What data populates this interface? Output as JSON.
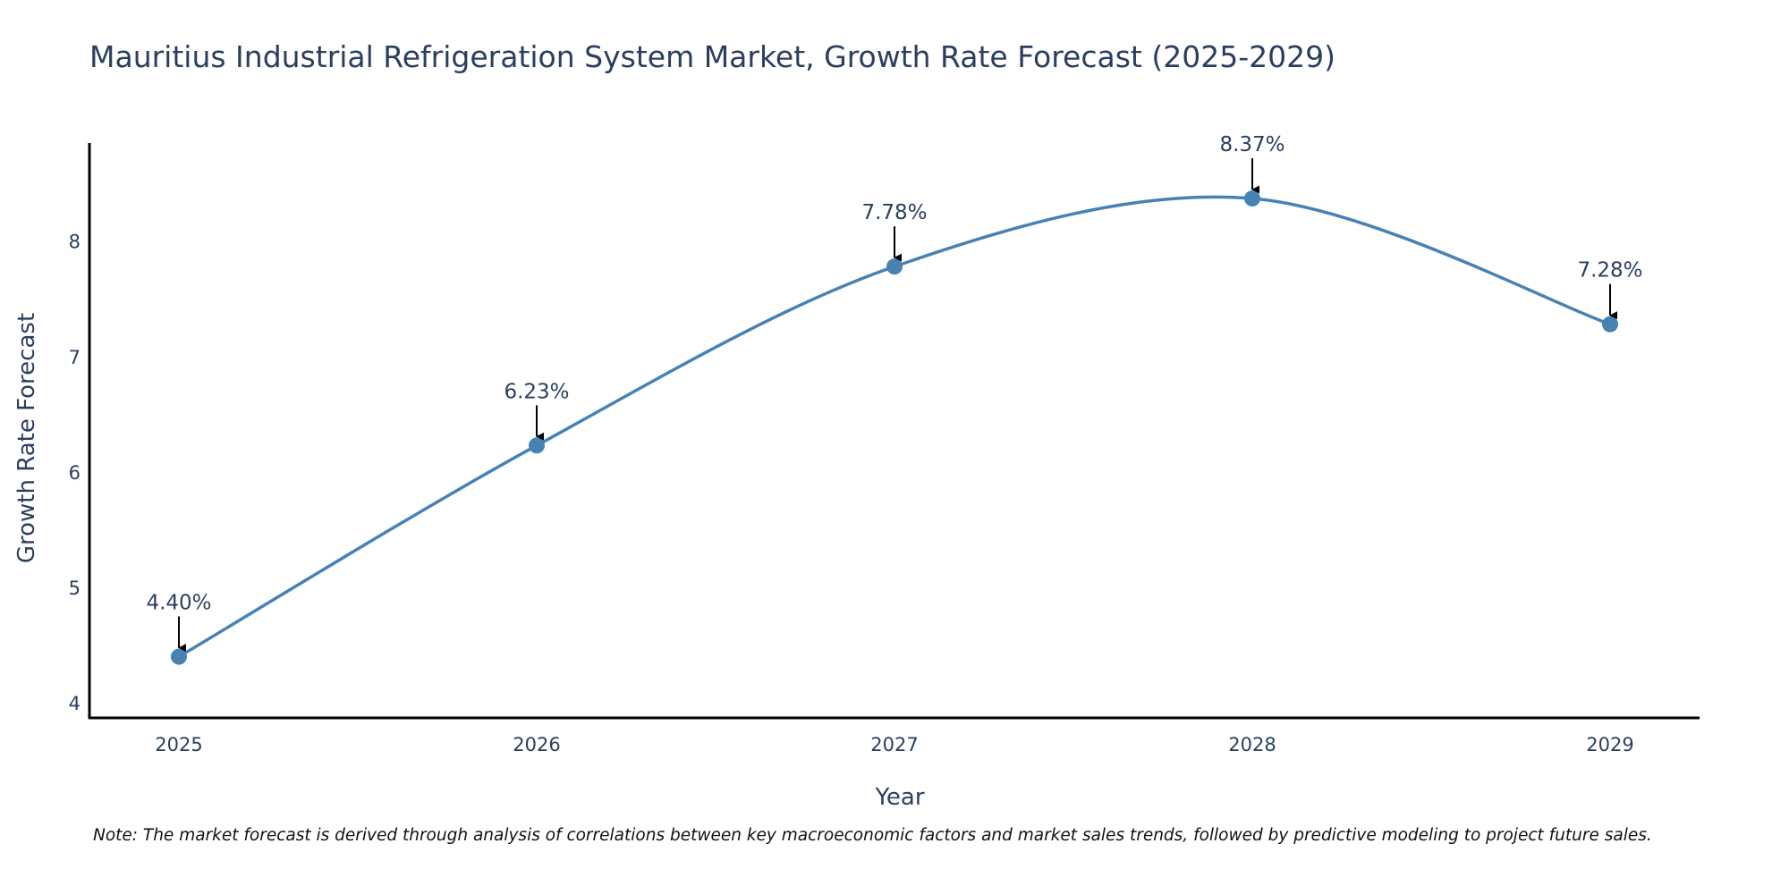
{
  "chart_data": {
    "type": "line",
    "title": "Mauritius Industrial Refrigeration System Market, Growth Rate Forecast (2025-2029)",
    "xlabel": "Year",
    "ylabel": "Growth Rate Forecast",
    "categories": [
      "2025",
      "2026",
      "2027",
      "2028",
      "2029"
    ],
    "series": [
      {
        "name": "Growth Rate Forecast",
        "values": [
          4.4,
          6.23,
          7.78,
          8.37,
          7.28
        ],
        "labels": [
          "4.40%",
          "6.23%",
          "7.78%",
          "8.37%",
          "7.28%"
        ],
        "color": "#4682b4"
      }
    ],
    "y_ticks": [
      4,
      5,
      6,
      7,
      8
    ],
    "ylim": [
      3.87,
      8.85
    ],
    "grid": false,
    "line_shape": "spline"
  },
  "note": "Note: The market forecast is derived through analysis of correlations between key macroeconomic factors and market sales trends, followed by predictive modeling to project future sales.",
  "colors": {
    "text": "#2a3f5f",
    "line": "#4682b4",
    "axis": "#000000"
  }
}
